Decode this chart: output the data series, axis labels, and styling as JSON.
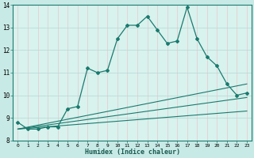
{
  "xlabel": "Humidex (Indice chaleur)",
  "xlim": [
    -0.5,
    23.5
  ],
  "ylim": [
    8,
    14
  ],
  "yticks": [
    8,
    9,
    10,
    11,
    12,
    13,
    14
  ],
  "xticks": [
    0,
    1,
    2,
    3,
    4,
    5,
    6,
    7,
    8,
    9,
    10,
    11,
    12,
    13,
    14,
    15,
    16,
    17,
    18,
    19,
    20,
    21,
    22,
    23
  ],
  "bg_outer": "#c8eae6",
  "bg_inner": "#d8f2ee",
  "grid_color_v": "#e8c8c8",
  "grid_color_h": "#b8d8d4",
  "line_color": "#1a7a6e",
  "line1_x": [
    0,
    1,
    2,
    3,
    4,
    5,
    6,
    7,
    8,
    9,
    10,
    11,
    12,
    13,
    14,
    15,
    16,
    17,
    18,
    19,
    20,
    21,
    22,
    23
  ],
  "line1_y": [
    8.8,
    8.5,
    8.5,
    8.6,
    8.6,
    9.4,
    9.5,
    11.2,
    11.0,
    11.1,
    12.5,
    13.1,
    13.1,
    13.5,
    12.9,
    12.3,
    12.4,
    13.9,
    12.5,
    11.7,
    11.3,
    10.5,
    10.0,
    10.1
  ],
  "line2_x": [
    0,
    23
  ],
  "line2_y": [
    8.5,
    10.5
  ],
  "line3_x": [
    0,
    23
  ],
  "line3_y": [
    8.5,
    9.9
  ],
  "line4_x": [
    0,
    23
  ],
  "line4_y": [
    8.5,
    9.3
  ]
}
